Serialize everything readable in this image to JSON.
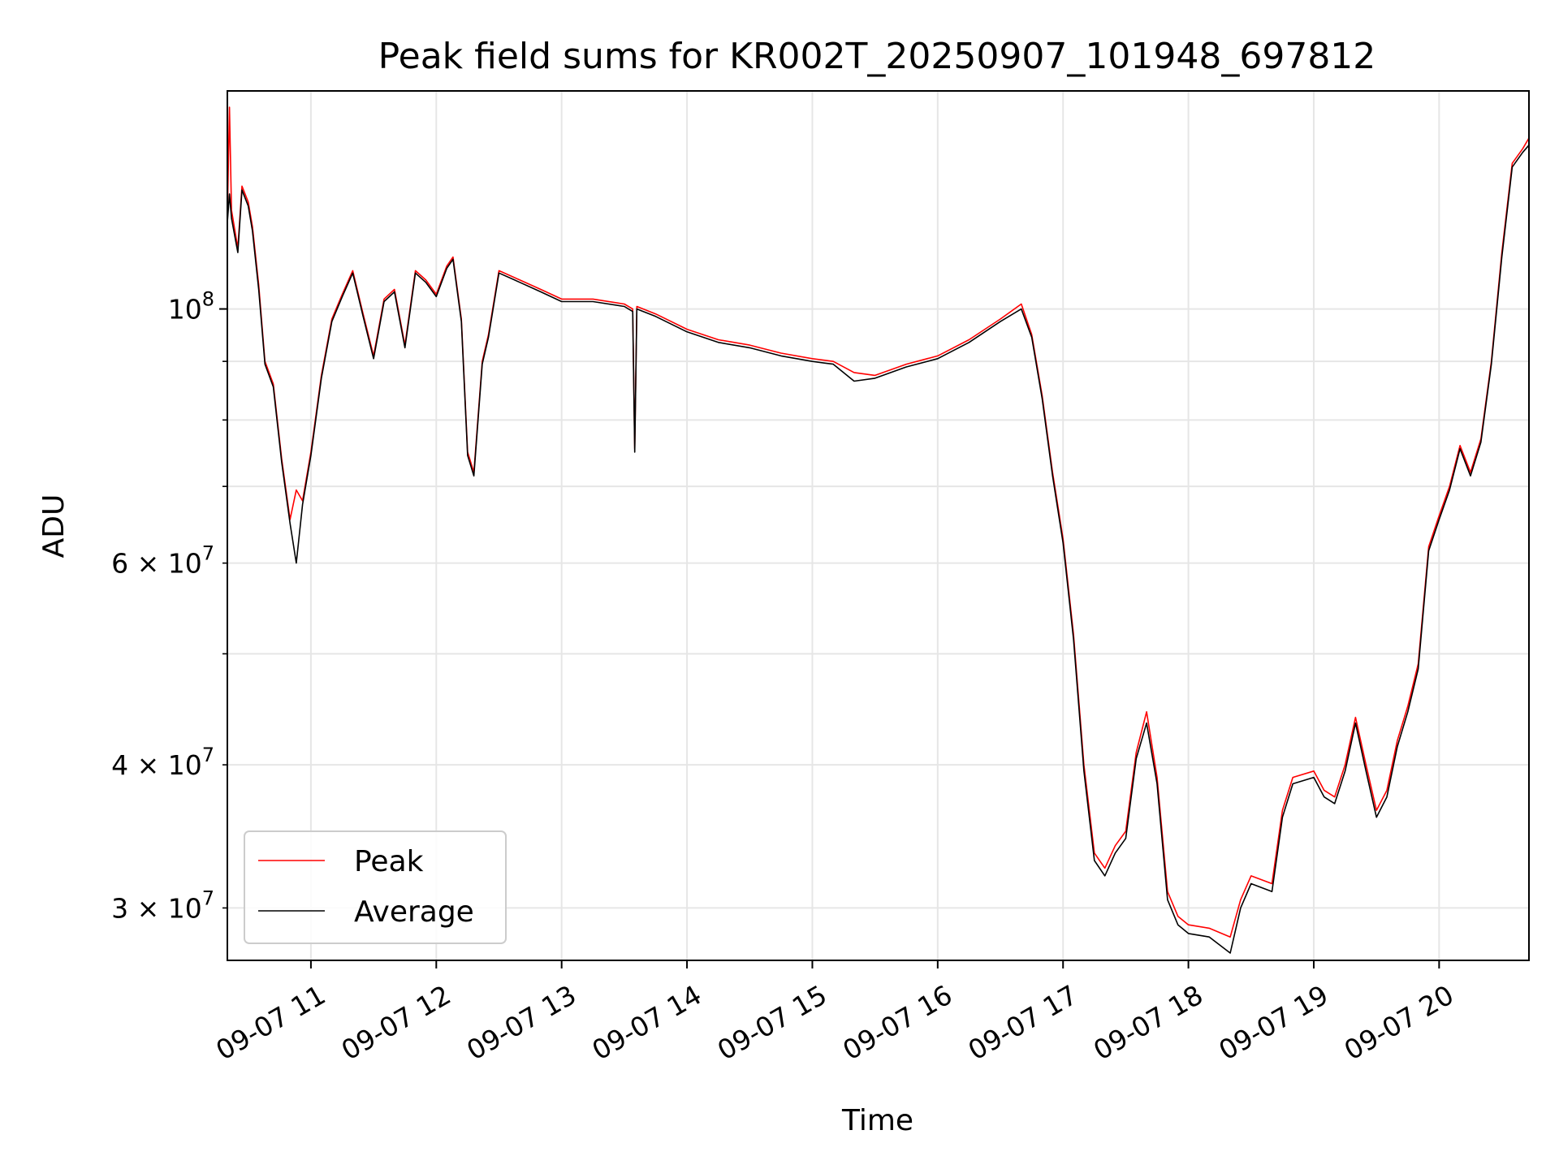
{
  "chart_data": {
    "type": "line",
    "title": "Peak field sums for KR002T_20250907_101948_697812",
    "xlabel": "Time",
    "ylabel": "ADU",
    "y_scale": "log",
    "xlim": [
      "2025-09-07 10:20",
      "2025-09-07 20:43"
    ],
    "ylim": [
      27000000,
      155000000
    ],
    "grid": true,
    "legend_position": "lower-left",
    "x_ticks": [
      {
        "value": "2025-09-07 11:00",
        "label": "09-07 11"
      },
      {
        "value": "2025-09-07 12:00",
        "label": "09-07 12"
      },
      {
        "value": "2025-09-07 13:00",
        "label": "09-07 13"
      },
      {
        "value": "2025-09-07 14:00",
        "label": "09-07 14"
      },
      {
        "value": "2025-09-07 15:00",
        "label": "09-07 15"
      },
      {
        "value": "2025-09-07 16:00",
        "label": "09-07 16"
      },
      {
        "value": "2025-09-07 17:00",
        "label": "09-07 17"
      },
      {
        "value": "2025-09-07 18:00",
        "label": "09-07 18"
      },
      {
        "value": "2025-09-07 19:00",
        "label": "09-07 19"
      },
      {
        "value": "2025-09-07 20:00",
        "label": "09-07 20"
      }
    ],
    "y_ticks_major": [
      {
        "value": 100000000,
        "label": "10",
        "exp": "8",
        "mantissa": ""
      }
    ],
    "y_ticks_minor": [
      {
        "value": 30000000,
        "mantissa": "3 × 10",
        "exp": "7"
      },
      {
        "value": 40000000,
        "mantissa": "4 × 10",
        "exp": "7"
      },
      {
        "value": 50000000,
        "mantissa": "",
        "exp": ""
      },
      {
        "value": 60000000,
        "mantissa": "6 × 10",
        "exp": "7"
      },
      {
        "value": 70000000,
        "mantissa": "",
        "exp": ""
      },
      {
        "value": 80000000,
        "mantissa": "",
        "exp": ""
      },
      {
        "value": 90000000,
        "mantissa": "",
        "exp": ""
      }
    ],
    "series": [
      {
        "name": "Peak",
        "color": "#ff0000",
        "points": [
          [
            "2025-09-07 10:20",
            120000000
          ],
          [
            "2025-09-07 10:21",
            150000000
          ],
          [
            "2025-09-07 10:22",
            122000000
          ],
          [
            "2025-09-07 10:25",
            113000000
          ],
          [
            "2025-09-07 10:27",
            128000000
          ],
          [
            "2025-09-07 10:30",
            124000000
          ],
          [
            "2025-09-07 10:32",
            118000000
          ],
          [
            "2025-09-07 10:35",
            105000000
          ],
          [
            "2025-09-07 10:38",
            90000000
          ],
          [
            "2025-09-07 10:42",
            86000000
          ],
          [
            "2025-09-07 10:46",
            74000000
          ],
          [
            "2025-09-07 10:50",
            65500000
          ],
          [
            "2025-09-07 10:53",
            69500000
          ],
          [
            "2025-09-07 10:56",
            68000000
          ],
          [
            "2025-09-07 11:00",
            75000000
          ],
          [
            "2025-09-07 11:05",
            87500000
          ],
          [
            "2025-09-07 11:10",
            98000000
          ],
          [
            "2025-09-07 11:15",
            103000000
          ],
          [
            "2025-09-07 11:20",
            108000000
          ],
          [
            "2025-09-07 11:25",
            99000000
          ],
          [
            "2025-09-07 11:30",
            91000000
          ],
          [
            "2025-09-07 11:35",
            102000000
          ],
          [
            "2025-09-07 11:40",
            104000000
          ],
          [
            "2025-09-07 11:45",
            93000000
          ],
          [
            "2025-09-07 11:50",
            108000000
          ],
          [
            "2025-09-07 11:55",
            106000000
          ],
          [
            "2025-09-07 12:00",
            103000000
          ],
          [
            "2025-09-07 12:05",
            109000000
          ],
          [
            "2025-09-07 12:08",
            111000000
          ],
          [
            "2025-09-07 12:12",
            98000000
          ],
          [
            "2025-09-07 12:15",
            75000000
          ],
          [
            "2025-09-07 12:18",
            72000000
          ],
          [
            "2025-09-07 12:22",
            90000000
          ],
          [
            "2025-09-07 12:25",
            95000000
          ],
          [
            "2025-09-07 12:30",
            108000000
          ],
          [
            "2025-09-07 12:40",
            106000000
          ],
          [
            "2025-09-07 12:50",
            104000000
          ],
          [
            "2025-09-07 13:00",
            102000000
          ],
          [
            "2025-09-07 13:15",
            102000000
          ],
          [
            "2025-09-07 13:30",
            101000000
          ],
          [
            "2025-09-07 13:34",
            100000000
          ],
          [
            "2025-09-07 13:35",
            75500000
          ],
          [
            "2025-09-07 13:36",
            100500000
          ],
          [
            "2025-09-07 13:45",
            99000000
          ],
          [
            "2025-09-07 14:00",
            96000000
          ],
          [
            "2025-09-07 14:15",
            94000000
          ],
          [
            "2025-09-07 14:30",
            93000000
          ],
          [
            "2025-09-07 14:45",
            91500000
          ],
          [
            "2025-09-07 15:00",
            90500000
          ],
          [
            "2025-09-07 15:10",
            90000000
          ],
          [
            "2025-09-07 15:20",
            88000000
          ],
          [
            "2025-09-07 15:30",
            87500000
          ],
          [
            "2025-09-07 15:45",
            89500000
          ],
          [
            "2025-09-07 16:00",
            91000000
          ],
          [
            "2025-09-07 16:15",
            94000000
          ],
          [
            "2025-09-07 16:30",
            98000000
          ],
          [
            "2025-09-07 16:40",
            101000000
          ],
          [
            "2025-09-07 16:45",
            95000000
          ],
          [
            "2025-09-07 16:50",
            84000000
          ],
          [
            "2025-09-07 16:55",
            72000000
          ],
          [
            "2025-09-07 17:00",
            63000000
          ],
          [
            "2025-09-07 17:05",
            52000000
          ],
          [
            "2025-09-07 17:10",
            40000000
          ],
          [
            "2025-09-07 17:15",
            33500000
          ],
          [
            "2025-09-07 17:20",
            32500000
          ],
          [
            "2025-09-07 17:25",
            34000000
          ],
          [
            "2025-09-07 17:30",
            35000000
          ],
          [
            "2025-09-07 17:35",
            41000000
          ],
          [
            "2025-09-07 17:40",
            44500000
          ],
          [
            "2025-09-07 17:45",
            39000000
          ],
          [
            "2025-09-07 17:50",
            31000000
          ],
          [
            "2025-09-07 17:55",
            29500000
          ],
          [
            "2025-09-07 18:00",
            29000000
          ],
          [
            "2025-09-07 18:10",
            28800000
          ],
          [
            "2025-09-07 18:20",
            28300000
          ],
          [
            "2025-09-07 18:25",
            30500000
          ],
          [
            "2025-09-07 18:30",
            32000000
          ],
          [
            "2025-09-07 18:40",
            31500000
          ],
          [
            "2025-09-07 18:45",
            36500000
          ],
          [
            "2025-09-07 18:50",
            39000000
          ],
          [
            "2025-09-07 19:00",
            39500000
          ],
          [
            "2025-09-07 19:05",
            38000000
          ],
          [
            "2025-09-07 19:10",
            37500000
          ],
          [
            "2025-09-07 19:15",
            40000000
          ],
          [
            "2025-09-07 19:20",
            44000000
          ],
          [
            "2025-09-07 19:25",
            40000000
          ],
          [
            "2025-09-07 19:30",
            36500000
          ],
          [
            "2025-09-07 19:35",
            38000000
          ],
          [
            "2025-09-07 19:40",
            42000000
          ],
          [
            "2025-09-07 19:45",
            45000000
          ],
          [
            "2025-09-07 19:50",
            49000000
          ],
          [
            "2025-09-07 19:55",
            62000000
          ],
          [
            "2025-09-07 20:00",
            66000000
          ],
          [
            "2025-09-07 20:05",
            70000000
          ],
          [
            "2025-09-07 20:10",
            76000000
          ],
          [
            "2025-09-07 20:15",
            72000000
          ],
          [
            "2025-09-07 20:20",
            77000000
          ],
          [
            "2025-09-07 20:25",
            90000000
          ],
          [
            "2025-09-07 20:30",
            112000000
          ],
          [
            "2025-09-07 20:35",
            134000000
          ],
          [
            "2025-09-07 20:40",
            138000000
          ],
          [
            "2025-09-07 20:43",
            141000000
          ]
        ]
      },
      {
        "name": "Average",
        "color": "#000000",
        "points": [
          [
            "2025-09-07 10:20",
            119000000
          ],
          [
            "2025-09-07 10:21",
            126000000
          ],
          [
            "2025-09-07 10:22",
            120000000
          ],
          [
            "2025-09-07 10:25",
            112000000
          ],
          [
            "2025-09-07 10:27",
            127000000
          ],
          [
            "2025-09-07 10:30",
            123000000
          ],
          [
            "2025-09-07 10:32",
            117000000
          ],
          [
            "2025-09-07 10:35",
            104000000
          ],
          [
            "2025-09-07 10:38",
            89500000
          ],
          [
            "2025-09-07 10:42",
            85500000
          ],
          [
            "2025-09-07 10:46",
            73500000
          ],
          [
            "2025-09-07 10:50",
            65000000
          ],
          [
            "2025-09-07 10:53",
            60000000
          ],
          [
            "2025-09-07 10:56",
            67500000
          ],
          [
            "2025-09-07 11:00",
            74500000
          ],
          [
            "2025-09-07 11:05",
            87000000
          ],
          [
            "2025-09-07 11:10",
            97500000
          ],
          [
            "2025-09-07 11:15",
            102500000
          ],
          [
            "2025-09-07 11:20",
            107500000
          ],
          [
            "2025-09-07 11:25",
            98500000
          ],
          [
            "2025-09-07 11:30",
            90500000
          ],
          [
            "2025-09-07 11:35",
            101500000
          ],
          [
            "2025-09-07 11:40",
            103500000
          ],
          [
            "2025-09-07 11:45",
            92500000
          ],
          [
            "2025-09-07 11:50",
            107500000
          ],
          [
            "2025-09-07 11:55",
            105500000
          ],
          [
            "2025-09-07 12:00",
            102500000
          ],
          [
            "2025-09-07 12:05",
            108500000
          ],
          [
            "2025-09-07 12:08",
            110500000
          ],
          [
            "2025-09-07 12:12",
            97500000
          ],
          [
            "2025-09-07 12:15",
            74500000
          ],
          [
            "2025-09-07 12:18",
            71500000
          ],
          [
            "2025-09-07 12:22",
            89500000
          ],
          [
            "2025-09-07 12:25",
            94500000
          ],
          [
            "2025-09-07 12:30",
            107500000
          ],
          [
            "2025-09-07 12:40",
            105500000
          ],
          [
            "2025-09-07 12:50",
            103500000
          ],
          [
            "2025-09-07 13:00",
            101500000
          ],
          [
            "2025-09-07 13:15",
            101500000
          ],
          [
            "2025-09-07 13:30",
            100500000
          ],
          [
            "2025-09-07 13:34",
            99500000
          ],
          [
            "2025-09-07 13:35",
            75000000
          ],
          [
            "2025-09-07 13:36",
            100000000
          ],
          [
            "2025-09-07 13:45",
            98500000
          ],
          [
            "2025-09-07 14:00",
            95500000
          ],
          [
            "2025-09-07 14:15",
            93500000
          ],
          [
            "2025-09-07 14:30",
            92500000
          ],
          [
            "2025-09-07 14:45",
            91000000
          ],
          [
            "2025-09-07 15:00",
            90000000
          ],
          [
            "2025-09-07 15:10",
            89500000
          ],
          [
            "2025-09-07 15:20",
            86500000
          ],
          [
            "2025-09-07 15:30",
            87000000
          ],
          [
            "2025-09-07 15:45",
            89000000
          ],
          [
            "2025-09-07 16:00",
            90500000
          ],
          [
            "2025-09-07 16:15",
            93500000
          ],
          [
            "2025-09-07 16:30",
            97500000
          ],
          [
            "2025-09-07 16:40",
            100000000
          ],
          [
            "2025-09-07 16:45",
            94500000
          ],
          [
            "2025-09-07 16:50",
            83500000
          ],
          [
            "2025-09-07 16:55",
            71500000
          ],
          [
            "2025-09-07 17:00",
            62500000
          ],
          [
            "2025-09-07 17:05",
            51500000
          ],
          [
            "2025-09-07 17:10",
            39500000
          ],
          [
            "2025-09-07 17:15",
            33000000
          ],
          [
            "2025-09-07 17:20",
            32000000
          ],
          [
            "2025-09-07 17:25",
            33500000
          ],
          [
            "2025-09-07 17:30",
            34500000
          ],
          [
            "2025-09-07 17:35",
            40500000
          ],
          [
            "2025-09-07 17:40",
            43500000
          ],
          [
            "2025-09-07 17:45",
            38500000
          ],
          [
            "2025-09-07 17:50",
            30500000
          ],
          [
            "2025-09-07 17:55",
            29000000
          ],
          [
            "2025-09-07 18:00",
            28500000
          ],
          [
            "2025-09-07 18:10",
            28300000
          ],
          [
            "2025-09-07 18:20",
            27400000
          ],
          [
            "2025-09-07 18:25",
            30000000
          ],
          [
            "2025-09-07 18:30",
            31500000
          ],
          [
            "2025-09-07 18:40",
            31000000
          ],
          [
            "2025-09-07 18:45",
            36000000
          ],
          [
            "2025-09-07 18:50",
            38500000
          ],
          [
            "2025-09-07 19:00",
            39000000
          ],
          [
            "2025-09-07 19:05",
            37500000
          ],
          [
            "2025-09-07 19:10",
            37000000
          ],
          [
            "2025-09-07 19:15",
            39500000
          ],
          [
            "2025-09-07 19:20",
            43500000
          ],
          [
            "2025-09-07 19:25",
            39500000
          ],
          [
            "2025-09-07 19:30",
            36000000
          ],
          [
            "2025-09-07 19:35",
            37500000
          ],
          [
            "2025-09-07 19:40",
            41500000
          ],
          [
            "2025-09-07 19:45",
            44500000
          ],
          [
            "2025-09-07 19:50",
            48500000
          ],
          [
            "2025-09-07 19:55",
            61500000
          ],
          [
            "2025-09-07 20:00",
            65500000
          ],
          [
            "2025-09-07 20:05",
            69500000
          ],
          [
            "2025-09-07 20:10",
            75500000
          ],
          [
            "2025-09-07 20:15",
            71500000
          ],
          [
            "2025-09-07 20:20",
            76500000
          ],
          [
            "2025-09-07 20:25",
            89500000
          ],
          [
            "2025-09-07 20:30",
            111000000
          ],
          [
            "2025-09-07 20:35",
            133000000
          ],
          [
            "2025-09-07 20:40",
            137000000
          ],
          [
            "2025-09-07 20:43",
            139000000
          ]
        ]
      }
    ]
  }
}
